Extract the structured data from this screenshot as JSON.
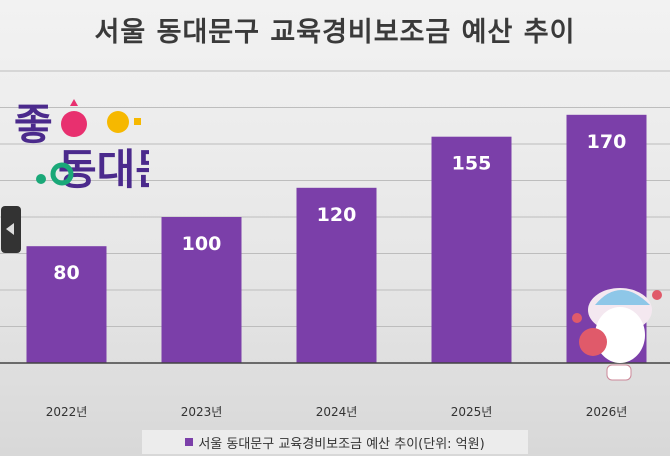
{
  "chart_data": {
    "type": "bar",
    "title": "서울 동대문구 교육경비보조금 예산 추이",
    "categories": [
      "2022년",
      "2023년",
      "2024년",
      "2025년",
      "2026년"
    ],
    "series": [
      {
        "name": "서울 동대문구 교육경비보조금 예산 추이(단위: 억원)",
        "values": [
          80,
          100,
          120,
          155,
          170
        ]
      }
    ],
    "ylim": [
      0,
      200
    ],
    "grid": true,
    "legend_position": "bottom",
    "bar_color": "#7b3fa9"
  },
  "logo_text": "좋아요 동대문",
  "nav": {
    "prev_icon": "chevron-left-icon"
  }
}
